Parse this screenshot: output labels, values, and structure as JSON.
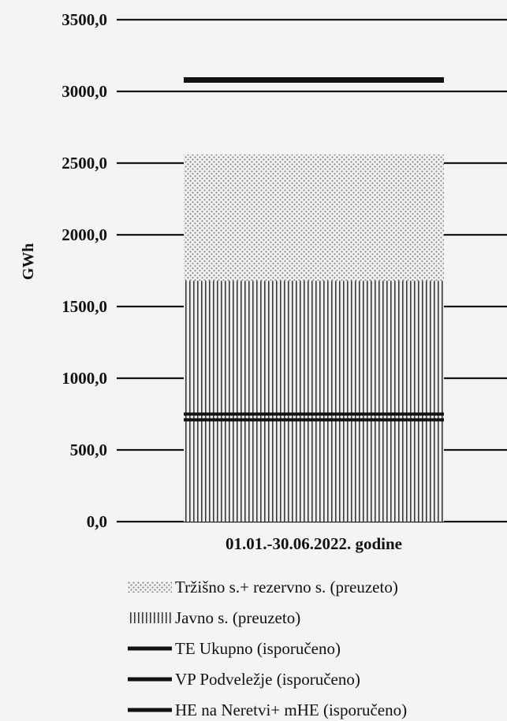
{
  "chart_data": {
    "type": "bar",
    "title": "",
    "xlabel": "",
    "ylabel": "GWh",
    "ylim": [
      0,
      3500
    ],
    "yticks": [
      "0,0",
      "500,0",
      "1000,0",
      "1500,0",
      "2000,0",
      "2500,0",
      "3000,0",
      "3500,0"
    ],
    "ytick_values": [
      0,
      500,
      1000,
      1500,
      2000,
      2500,
      3000,
      3500
    ],
    "grid": true,
    "legend_position": "bottom",
    "categories": [
      "01.01.-30.06.2022. godine"
    ],
    "stacked_series": [
      {
        "name": "Javno s. (preuzeto)",
        "values": [
          1680
        ],
        "pattern": "vertical-hatch"
      },
      {
        "name": "Tržišno s.+ rezervno s. (preuzeto)",
        "values": [
          880
        ],
        "pattern": "dots"
      }
    ],
    "line_series": [
      {
        "name": "TE Ukupno (isporučeno)",
        "values": [
          3080
        ]
      },
      {
        "name": "VP Podveležje (isporučeno)",
        "values": [
          750
        ]
      },
      {
        "name": "HE na Neretvi+ mHE (isporučeno)",
        "values": [
          710
        ]
      }
    ],
    "legend": [
      {
        "label": "Tržišno s.+ rezervno s. (preuzeto)",
        "marker": "dots"
      },
      {
        "label": "Javno s. (preuzeto)",
        "marker": "vertical-hatch"
      },
      {
        "label": "TE Ukupno (isporučeno)",
        "marker": "line"
      },
      {
        "label": "VP Podveležje (isporučeno)",
        "marker": "line"
      },
      {
        "label": "HE na Neretvi+ mHE (isporučeno)",
        "marker": "line"
      }
    ]
  }
}
